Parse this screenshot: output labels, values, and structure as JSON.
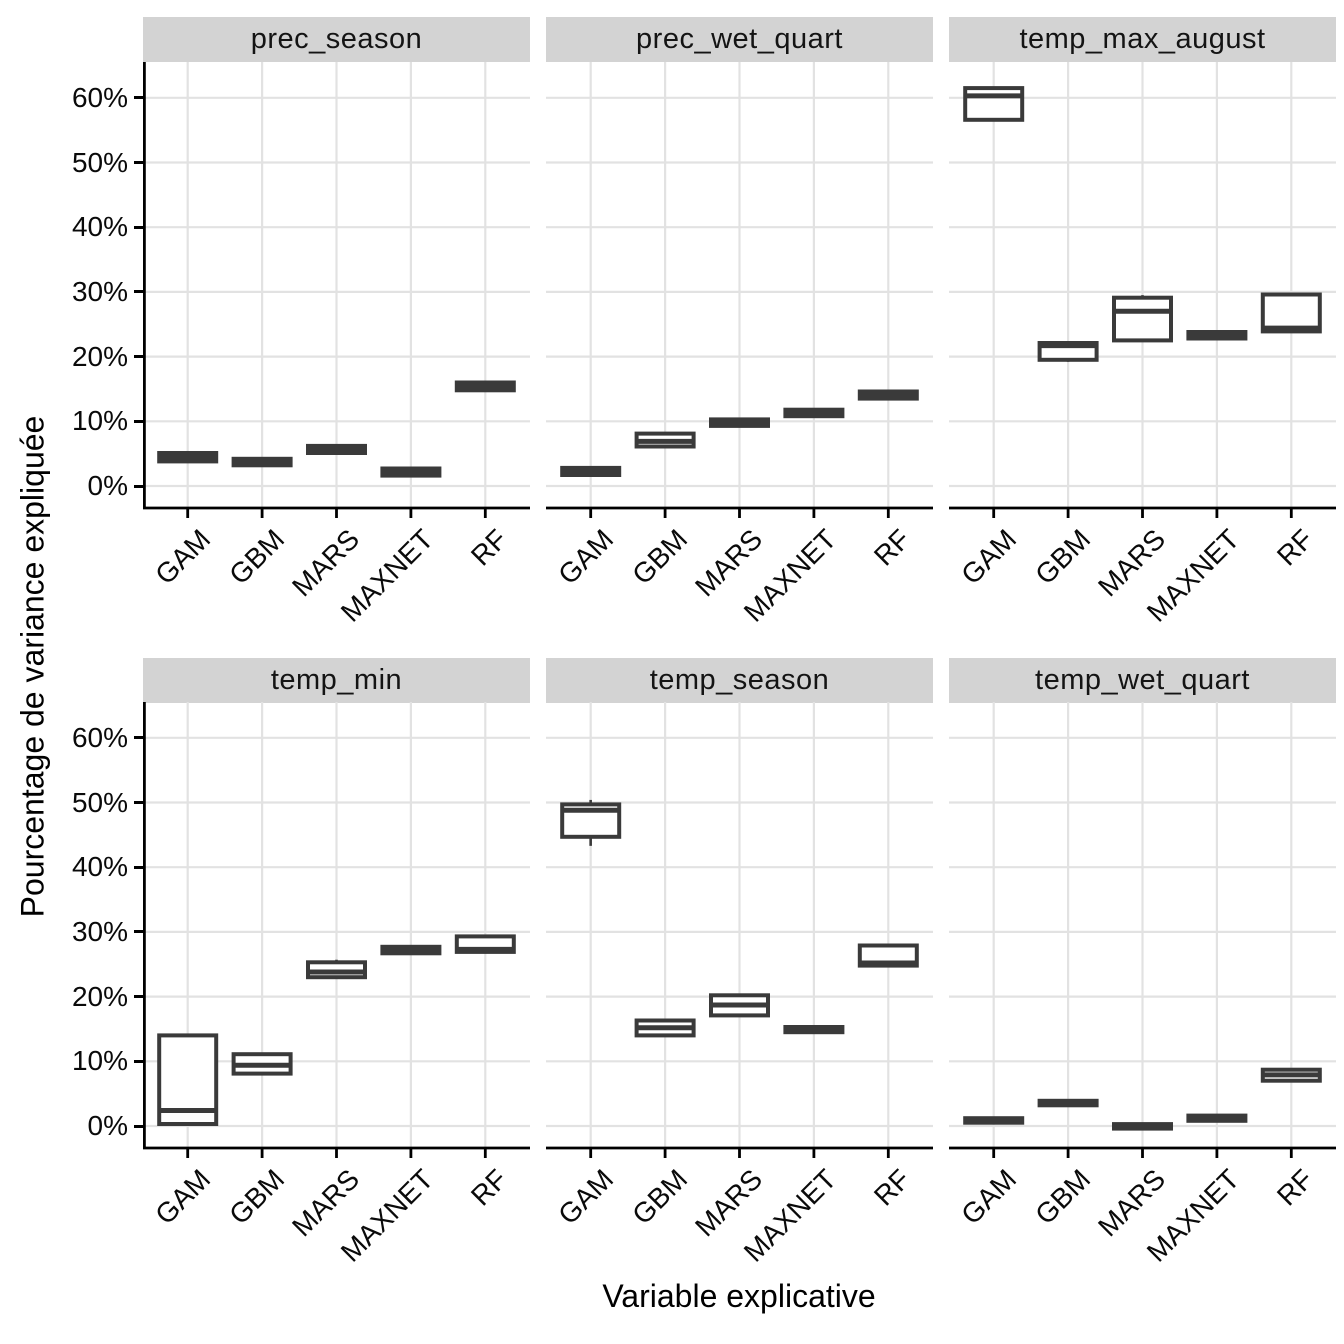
{
  "figure": {
    "background": "#ffffff"
  },
  "chart_data": {
    "type": "boxplot",
    "title": "",
    "xlabel": "Variable explicative",
    "ylabel": "Pourcentage de variance expliquée",
    "x_categories": [
      "GAM",
      "GBM",
      "MARS",
      "MAXNET",
      "RF"
    ],
    "y_tick_labels": [
      "0%",
      "10%",
      "20%",
      "30%",
      "40%",
      "50%",
      "60%"
    ],
    "y_tick_values": [
      0,
      10,
      20,
      30,
      40,
      50,
      60
    ],
    "ylim": [
      -3.4,
      65.5
    ],
    "unit": "percent of variance explained",
    "grid": "major-only",
    "legend_position": "none",
    "facets": [
      {
        "label": "prec_season",
        "boxes": [
          {
            "model": "GAM",
            "q1": 3.8,
            "med": 4.4,
            "q3": 5.1
          },
          {
            "model": "GBM",
            "q1": 3.2,
            "med": 3.7,
            "q3": 4.2
          },
          {
            "model": "MARS",
            "q1": 5.1,
            "med": 5.7,
            "q3": 6.2
          },
          {
            "model": "MAXNET",
            "q1": 1.6,
            "med": 2.2,
            "q3": 2.7
          },
          {
            "model": "RF",
            "q1": 14.8,
            "med": 15.4,
            "q3": 16.0
          }
        ]
      },
      {
        "label": "prec_wet_quart",
        "boxes": [
          {
            "model": "GAM",
            "q1": 1.7,
            "med": 2.3,
            "q3": 2.8
          },
          {
            "model": "GBM",
            "q1": 6.1,
            "med": 6.9,
            "q3": 8.1
          },
          {
            "model": "MARS",
            "q1": 9.3,
            "med": 9.8,
            "q3": 10.3
          },
          {
            "model": "MAXNET",
            "q1": 10.8,
            "med": 11.3,
            "q3": 11.8
          },
          {
            "model": "RF",
            "q1": 13.5,
            "med": 14.1,
            "q3": 14.6
          }
        ]
      },
      {
        "label": "temp_max_august",
        "boxes": [
          {
            "model": "GAM",
            "q1": 56.6,
            "med": 60.3,
            "q3": 61.5
          },
          {
            "model": "GBM",
            "lo": 19.2,
            "q1": 19.5,
            "med": 21.7,
            "q3": 22.1
          },
          {
            "model": "MARS",
            "q1": 22.5,
            "med": 27.0,
            "q3": 29.1,
            "hi": 29.5
          },
          {
            "model": "MAXNET",
            "q1": 22.8,
            "med": 23.3,
            "q3": 23.8
          },
          {
            "model": "RF",
            "q1": 23.9,
            "med": 24.4,
            "q3": 29.6,
            "hi": 29.9
          }
        ]
      },
      {
        "label": "temp_min",
        "boxes": [
          {
            "model": "GAM",
            "q1": 0.3,
            "med": 2.4,
            "q3": 14.0
          },
          {
            "model": "GBM",
            "q1": 8.1,
            "med": 9.4,
            "q3": 11.1
          },
          {
            "model": "MARS",
            "q1": 23.0,
            "med": 23.8,
            "q3": 25.3,
            "hi": 25.7
          },
          {
            "model": "MAXNET",
            "q1": 26.7,
            "med": 27.2,
            "q3": 27.7
          },
          {
            "model": "RF",
            "q1": 26.9,
            "med": 27.3,
            "q3": 29.3
          }
        ]
      },
      {
        "label": "temp_season",
        "boxes": [
          {
            "model": "GAM",
            "lo": 43.3,
            "q1": 44.7,
            "med": 48.8,
            "q3": 49.7,
            "hi": 50.4
          },
          {
            "model": "GBM",
            "q1": 14.0,
            "med": 15.2,
            "q3": 16.3
          },
          {
            "model": "MARS",
            "q1": 17.1,
            "med": 18.7,
            "q3": 20.2
          },
          {
            "model": "MAXNET",
            "q1": 14.5,
            "med": 14.9,
            "q3": 15.3
          },
          {
            "model": "RF",
            "q1": 24.8,
            "med": 25.2,
            "q3": 27.9,
            "hi": 28.2
          }
        ]
      },
      {
        "label": "temp_wet_quart",
        "boxes": [
          {
            "model": "GAM",
            "q1": 0.5,
            "med": 0.9,
            "q3": 1.2
          },
          {
            "model": "GBM",
            "q1": 3.2,
            "med": 3.5,
            "q3": 3.9
          },
          {
            "model": "MARS",
            "q1": -0.4,
            "med": 0.0,
            "q3": 0.3
          },
          {
            "model": "MAXNET",
            "q1": 0.8,
            "med": 1.2,
            "q3": 1.6
          },
          {
            "model": "RF",
            "q1": 7.0,
            "med": 7.9,
            "q3": 8.7
          }
        ]
      }
    ]
  },
  "colors": {
    "box_stroke": "#3A3A3A",
    "box_fill": "#FFFFFF",
    "gridline": "#E2E2E2",
    "strip_background": "#D3D3D3",
    "axis_line": "#000000",
    "text": "#000000"
  }
}
